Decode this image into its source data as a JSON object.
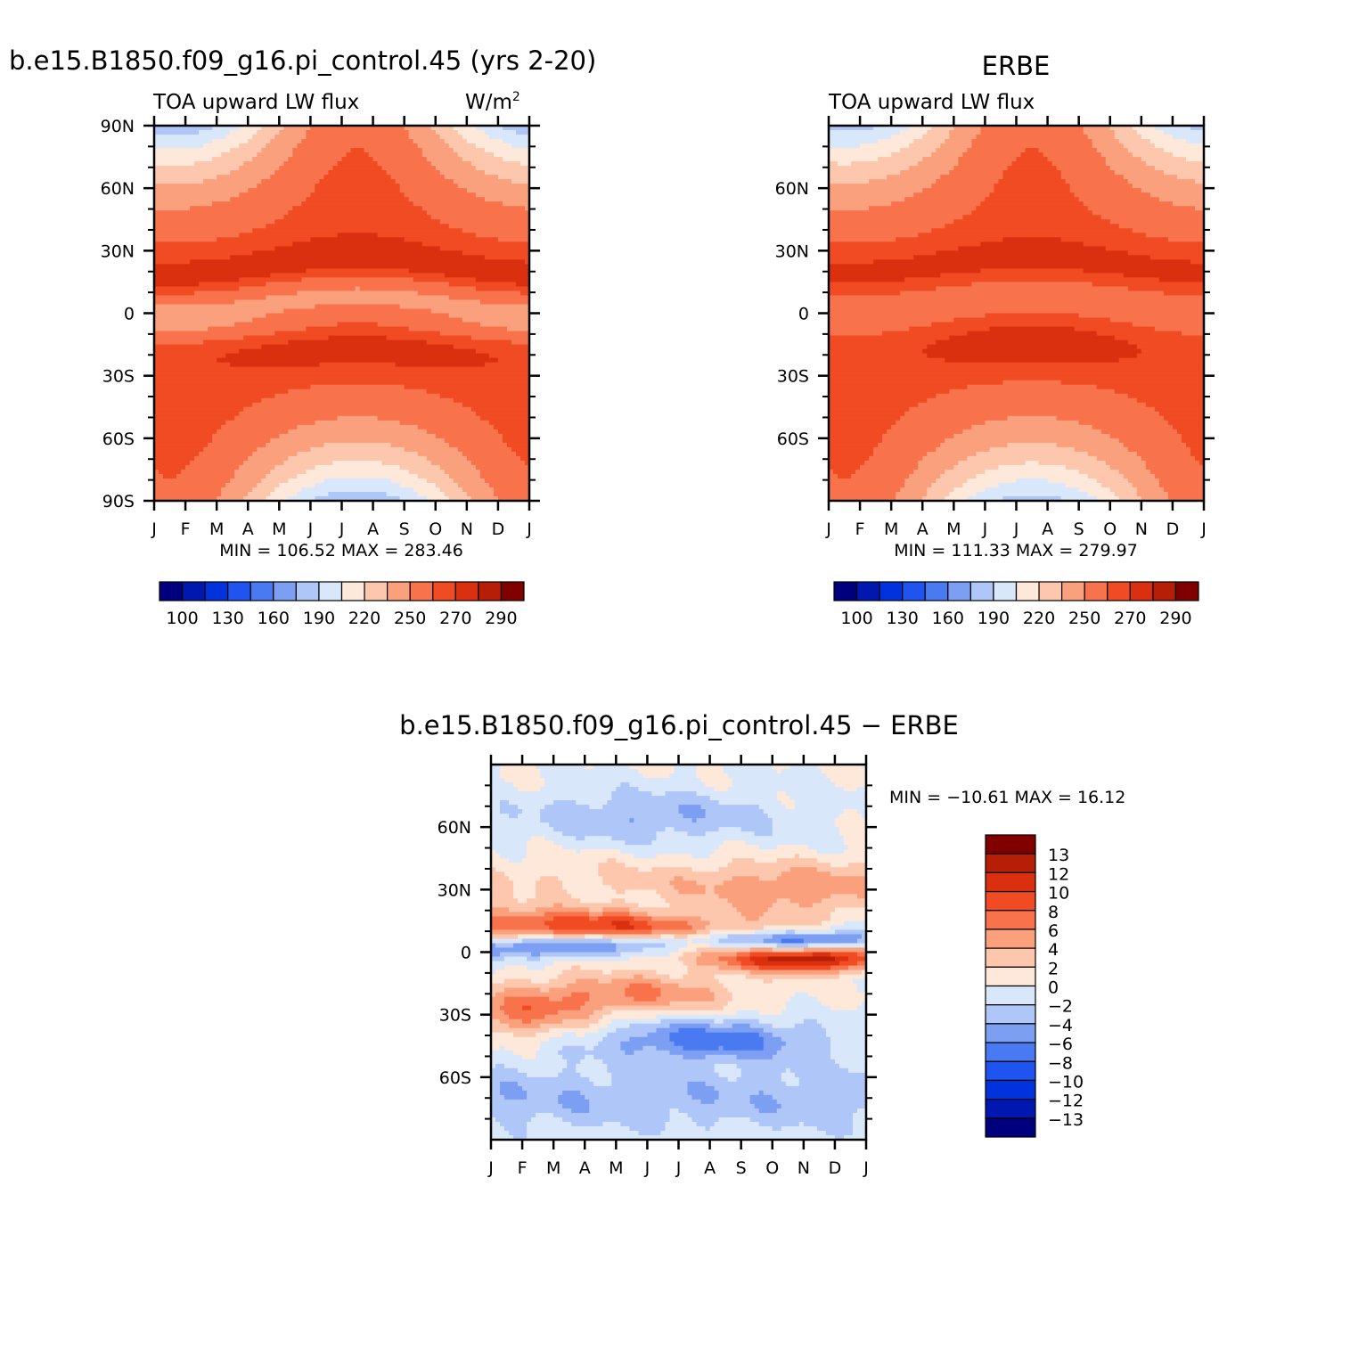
{
  "colors": {
    "scale": [
      "#00007f",
      "#0018b0",
      "#0032dd",
      "#1f54f0",
      "#4a7af2",
      "#7c9ff4",
      "#aec6f8",
      "#d9e7fb",
      "#fde8da",
      "#fcc7ac",
      "#fba07c",
      "#f8724b",
      "#f04b22",
      "#db3010",
      "#b61e07",
      "#800000"
    ],
    "diff_scale": [
      "#00007f",
      "#0018b0",
      "#0032dd",
      "#1f54f0",
      "#4a7af2",
      "#7c9ff4",
      "#aec6f8",
      "#d9e7fb",
      "#fde8da",
      "#fcc7ac",
      "#fba07c",
      "#f8724b",
      "#f04b22",
      "#db3010",
      "#b61e07",
      "#800000"
    ]
  },
  "chart_data": [
    {
      "id": "model",
      "type": "heatmap",
      "title": "b.e15.B1850.f09_g16.pi_control.45 (yrs 2-20)",
      "left_subtitle": "TOA upward LW flux",
      "right_subtitle": "W/m",
      "right_subtitle_sup": "2",
      "x_ticks": [
        "J",
        "F",
        "M",
        "A",
        "M",
        "J",
        "J",
        "A",
        "S",
        "O",
        "N",
        "D",
        "J"
      ],
      "y_ticks": [
        "90N",
        "60N",
        "30N",
        "0",
        "30S",
        "60S",
        "90S"
      ],
      "y_tick_values": [
        90,
        60,
        30,
        0,
        -30,
        -60,
        -90
      ],
      "ylim": [
        -90,
        90
      ],
      "stats": "MIN = 106.52 MAX = 283.46",
      "min": 106.52,
      "max": 283.46,
      "levels": [
        100,
        110,
        120,
        130,
        145,
        160,
        175,
        190,
        205,
        220,
        235,
        250,
        260,
        270,
        280,
        290
      ],
      "colorbar_labels": [
        "100",
        "130",
        "160",
        "190",
        "220",
        "250",
        "270",
        "290"
      ]
    },
    {
      "id": "obs",
      "type": "heatmap",
      "title": "ERBE",
      "left_subtitle": "TOA upward LW flux",
      "x_ticks": [
        "J",
        "F",
        "M",
        "A",
        "M",
        "J",
        "J",
        "A",
        "S",
        "O",
        "N",
        "D",
        "J"
      ],
      "y_ticks": [
        "60N",
        "30N",
        "0",
        "30S",
        "60S"
      ],
      "y_tick_values": [
        60,
        30,
        0,
        -30,
        -60
      ],
      "ylim": [
        -90,
        90
      ],
      "stats": "MIN = 111.33 MAX = 279.97",
      "min": 111.33,
      "max": 279.97,
      "levels": [
        100,
        110,
        120,
        130,
        145,
        160,
        175,
        190,
        205,
        220,
        235,
        250,
        260,
        270,
        280,
        290
      ],
      "colorbar_labels": [
        "100",
        "130",
        "160",
        "190",
        "220",
        "250",
        "270",
        "290"
      ]
    },
    {
      "id": "diff",
      "type": "heatmap",
      "title": "b.e15.B1850.f09_g16.pi_control.45 − ERBE",
      "x_ticks": [
        "J",
        "F",
        "M",
        "A",
        "M",
        "J",
        "J",
        "A",
        "S",
        "O",
        "N",
        "D",
        "J"
      ],
      "y_ticks": [
        "60N",
        "30N",
        "0",
        "30S",
        "60S"
      ],
      "y_tick_values": [
        60,
        30,
        0,
        -30,
        -60
      ],
      "ylim": [
        -90,
        90
      ],
      "stats": "MIN = −10.61 MAX =   16.12",
      "min": -10.61,
      "max": 16.12,
      "levels": [
        -13,
        -12,
        -10,
        -8,
        -6,
        -4,
        -2,
        0,
        2,
        4,
        6,
        8,
        10,
        12,
        13
      ],
      "colorbar_labels": [
        "13",
        "12",
        "10",
        "8",
        "6",
        "4",
        "2",
        "0",
        "−2",
        "−4",
        "−6",
        "−8",
        "−10",
        "−12",
        "−13"
      ]
    }
  ]
}
